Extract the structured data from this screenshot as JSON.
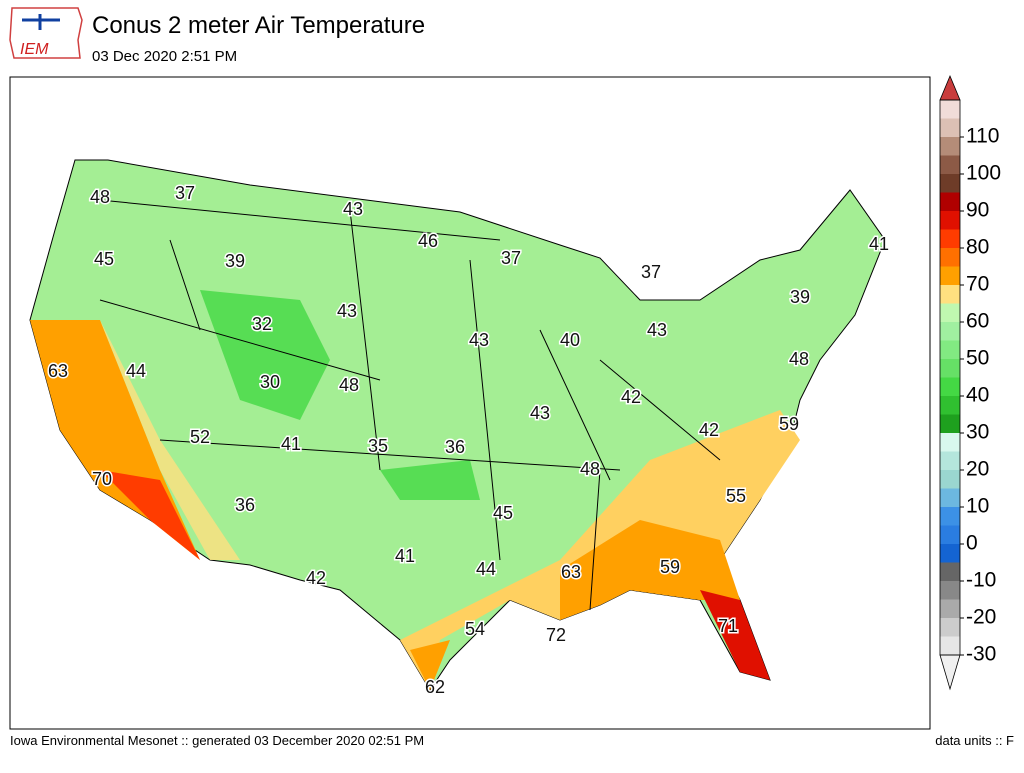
{
  "header": {
    "title": "Conus 2 meter Air Temperature",
    "subtitle": "03 Dec 2020 2:51 PM",
    "logo": "IEM"
  },
  "map": {
    "values": [
      48,
      37,
      43,
      46,
      45,
      39,
      37,
      37,
      41,
      39,
      32,
      43,
      43,
      40,
      43,
      63,
      44,
      30,
      48,
      48,
      42,
      43,
      52,
      41,
      35,
      36,
      42,
      59,
      48,
      70,
      36,
      45,
      55,
      41,
      44,
      63,
      59,
      42,
      54,
      72,
      71,
      62
    ]
  },
  "colorbar": {
    "lim": [
      -30,
      120
    ],
    "ticks": [
      -30,
      -20,
      -10,
      0,
      10,
      20,
      30,
      40,
      50,
      60,
      70,
      80,
      90,
      100,
      110
    ],
    "colors": [
      "#e6e6e6",
      "#cccccc",
      "#aaaaaa",
      "#888888",
      "#666666",
      "#1464d2",
      "#2a7de1",
      "#3c91e6",
      "#6cb8e0",
      "#9ad6d0",
      "#b4e6dc",
      "#d8f8ee",
      "#1ea01e",
      "#30c030",
      "#44d844",
      "#66e066",
      "#82ea82",
      "#a0f0a0",
      "#c0f8b0",
      "#ffe080",
      "#ffa000",
      "#ff7000",
      "#ff3c00",
      "#e01000",
      "#b00000",
      "#6e3c28",
      "#8c5a46",
      "#b48c78",
      "#dcc0b4",
      "#f0dcd8"
    ],
    "over": "#c83c3c",
    "under": "#f0f0f0"
  },
  "footer": {
    "left": "Iowa Environmental Mesonet :: generated 03 December 2020 02:51 PM",
    "right": "data units :: F"
  }
}
